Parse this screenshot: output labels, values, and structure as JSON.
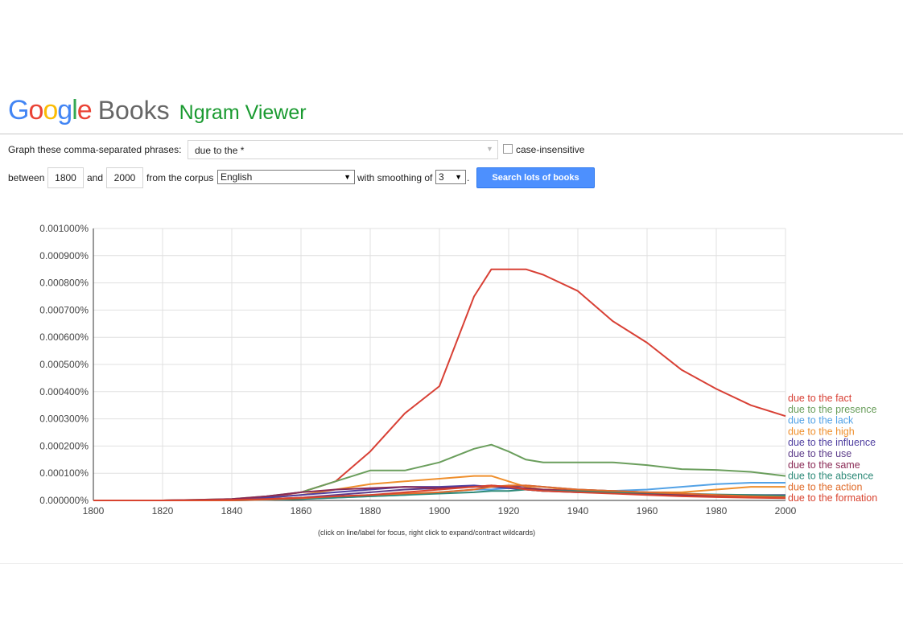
{
  "header": {
    "logo_text": "Google",
    "books": "Books",
    "ngram": "Ngram Viewer",
    "logo_colors": [
      "#4285f4",
      "#ea4335",
      "#fbbc05",
      "#4285f4",
      "#34a853",
      "#ea4335"
    ]
  },
  "form": {
    "phrases_label": "Graph these comma-separated phrases:",
    "phrases_value": "due to the *",
    "case_label": "case-insensitive",
    "between_label": "between",
    "year_start": "1800",
    "and_label": "and",
    "year_end": "2000",
    "corpus_label": "from the corpus",
    "corpus_value": "English",
    "smoothing_label": "with smoothing of",
    "smoothing_value": "3",
    "search_button": "Search lots of books"
  },
  "footnote": "(click on line/label for focus, right click to expand/contract wildcards)",
  "chart_data": {
    "type": "line",
    "x": [
      1800,
      1820,
      1840,
      1850,
      1860,
      1870,
      1880,
      1890,
      1900,
      1910,
      1915,
      1920,
      1925,
      1930,
      1940,
      1950,
      1960,
      1970,
      1980,
      1990,
      2000
    ],
    "xlim": [
      1800,
      2000
    ],
    "ylim": [
      0,
      0.001
    ],
    "grid": true,
    "x_ticks": [
      "1800",
      "1820",
      "1840",
      "1860",
      "1880",
      "1900",
      "1920",
      "1940",
      "1960",
      "1980",
      "2000"
    ],
    "y_ticks": [
      "0.000000%",
      "0.000100%",
      "0.000200%",
      "0.000300%",
      "0.000400%",
      "0.000500%",
      "0.000600%",
      "0.000700%",
      "0.000800%",
      "0.000900%",
      "0.001000%"
    ],
    "series": [
      {
        "name": "due to the fact",
        "color": "#d84035",
        "values": [
          0,
          0,
          2e-06,
          1e-05,
          3e-05,
          7e-05,
          0.00018,
          0.00032,
          0.00042,
          0.00075,
          0.00085,
          0.00085,
          0.00085,
          0.00083,
          0.00077,
          0.00066,
          0.00058,
          0.00048,
          0.00041,
          0.00035,
          0.00031
        ]
      },
      {
        "name": "due to the presence",
        "color": "#6a9e5c",
        "values": [
          0,
          0,
          5e-06,
          1.5e-05,
          3e-05,
          7e-05,
          0.00011,
          0.00011,
          0.00014,
          0.00019,
          0.000205,
          0.00018,
          0.00015,
          0.00014,
          0.00014,
          0.00014,
          0.00013,
          0.000115,
          0.000112,
          0.000105,
          9e-05
        ]
      },
      {
        "name": "due to the lack",
        "color": "#53a2e6",
        "values": [
          0,
          0,
          0,
          2e-06,
          5e-06,
          1e-05,
          1.5e-05,
          2e-05,
          3e-05,
          4e-05,
          4e-05,
          4.5e-05,
          4e-05,
          3.5e-05,
          3.5e-05,
          3.5e-05,
          4e-05,
          5e-05,
          6e-05,
          6.5e-05,
          6.5e-05
        ]
      },
      {
        "name": "due to the high",
        "color": "#ef8f2c",
        "values": [
          0,
          0,
          3e-06,
          1e-05,
          2e-05,
          4e-05,
          6e-05,
          7e-05,
          8e-05,
          9e-05,
          9e-05,
          7e-05,
          5e-05,
          4e-05,
          4e-05,
          3.5e-05,
          3e-05,
          3e-05,
          4e-05,
          5e-05,
          5e-05
        ]
      },
      {
        "name": "due to the influence",
        "color": "#4f3fa0",
        "values": [
          0,
          0,
          3e-06,
          1e-05,
          2e-05,
          3e-05,
          4e-05,
          5e-05,
          5e-05,
          5.5e-05,
          5e-05,
          4.5e-05,
          4e-05,
          3.5e-05,
          3e-05,
          2.8e-05,
          2.5e-05,
          2.3e-05,
          2e-05,
          1.8e-05,
          1.6e-05
        ]
      },
      {
        "name": "due to the use",
        "color": "#5d3c8a",
        "values": [
          0,
          0,
          2e-06,
          5e-06,
          1e-05,
          2e-05,
          3e-05,
          4e-05,
          4.5e-05,
          5e-05,
          5e-05,
          5e-05,
          5.5e-05,
          5e-05,
          4e-05,
          3.5e-05,
          3e-05,
          2.5e-05,
          2e-05,
          2e-05,
          2e-05
        ]
      },
      {
        "name": "due to the same",
        "color": "#8a2a55",
        "values": [
          0,
          0,
          5e-06,
          1.5e-05,
          3e-05,
          4e-05,
          4.5e-05,
          5e-05,
          4.5e-05,
          5e-05,
          5.5e-05,
          5e-05,
          4.5e-05,
          4e-05,
          3.5e-05,
          3e-05,
          2.5e-05,
          2e-05,
          1.5e-05,
          1.2e-05,
          1e-05
        ]
      },
      {
        "name": "due to the absence",
        "color": "#2e8a78",
        "values": [
          0,
          0,
          0,
          2e-06,
          5e-06,
          1e-05,
          1.5e-05,
          2e-05,
          2.5e-05,
          3e-05,
          3.5e-05,
          3.5e-05,
          4e-05,
          3.5e-05,
          3.5e-05,
          3e-05,
          2.8e-05,
          2.5e-05,
          2.2e-05,
          2e-05,
          1.8e-05
        ]
      },
      {
        "name": "due to the action",
        "color": "#e06b2a",
        "values": [
          0,
          0,
          0,
          3e-06,
          8e-06,
          1.5e-05,
          2e-05,
          2.5e-05,
          3e-05,
          4e-05,
          5e-05,
          5.5e-05,
          5.5e-05,
          5e-05,
          4e-05,
          3.5e-05,
          3e-05,
          2.5e-05,
          2e-05,
          1.5e-05,
          1.2e-05
        ]
      },
      {
        "name": "due to the formation",
        "color": "#d8432f",
        "values": [
          0,
          0,
          2e-06,
          5e-06,
          1e-05,
          1.5e-05,
          2e-05,
          3e-05,
          4e-05,
          5e-05,
          5.5e-05,
          5e-05,
          4e-05,
          3.5e-05,
          3e-05,
          2.5e-05,
          2e-05,
          1.5e-05,
          1.2e-05,
          1e-05,
          8e-06
        ]
      }
    ]
  }
}
